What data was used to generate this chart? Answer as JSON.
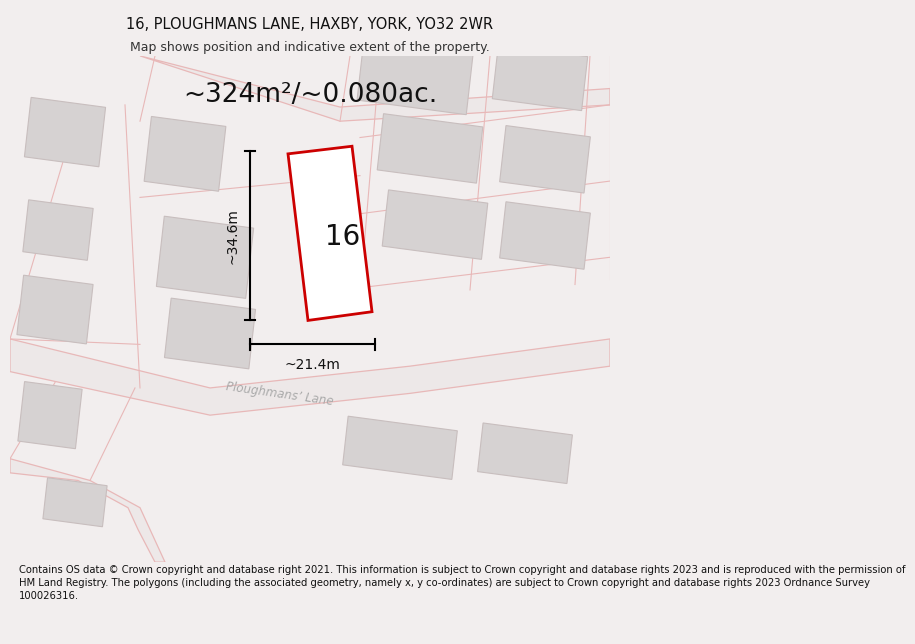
{
  "title_line1": "16, PLOUGHMANS LANE, HAXBY, YORK, YO32 2WR",
  "title_line2": "Map shows position and indicative extent of the property.",
  "area_text": "~324m²/~0.080ac.",
  "label_number": "16",
  "dim_vertical": "~34.6m",
  "dim_horizontal": "~21.4m",
  "street_label": "Ploughmans’ Lane",
  "footer_lines": [
    "Contains OS data © Crown copyright and database right 2021. This information is subject to Crown copyright and database rights 2023 and is reproduced with the permission of",
    "HM Land Registry. The polygons (including the associated geometry, namely x, y co-ordinates) are subject to Crown copyright and database rights 2023 Ordnance Survey",
    "100026316."
  ],
  "bg_color": "#f2eeee",
  "map_bg": "#faf8f8",
  "plot_color": "#cc0000",
  "building_color": "#d6d2d2",
  "building_edge": "#c8bebe",
  "road_fill": "#ede8e8",
  "line_color": "#e8b8b8",
  "title_fs": 10.5,
  "subtitle_fs": 9,
  "area_fs": 19,
  "label_fs": 20,
  "dim_fs": 10,
  "footer_fs": 7.2,
  "street_fs": 8.5
}
